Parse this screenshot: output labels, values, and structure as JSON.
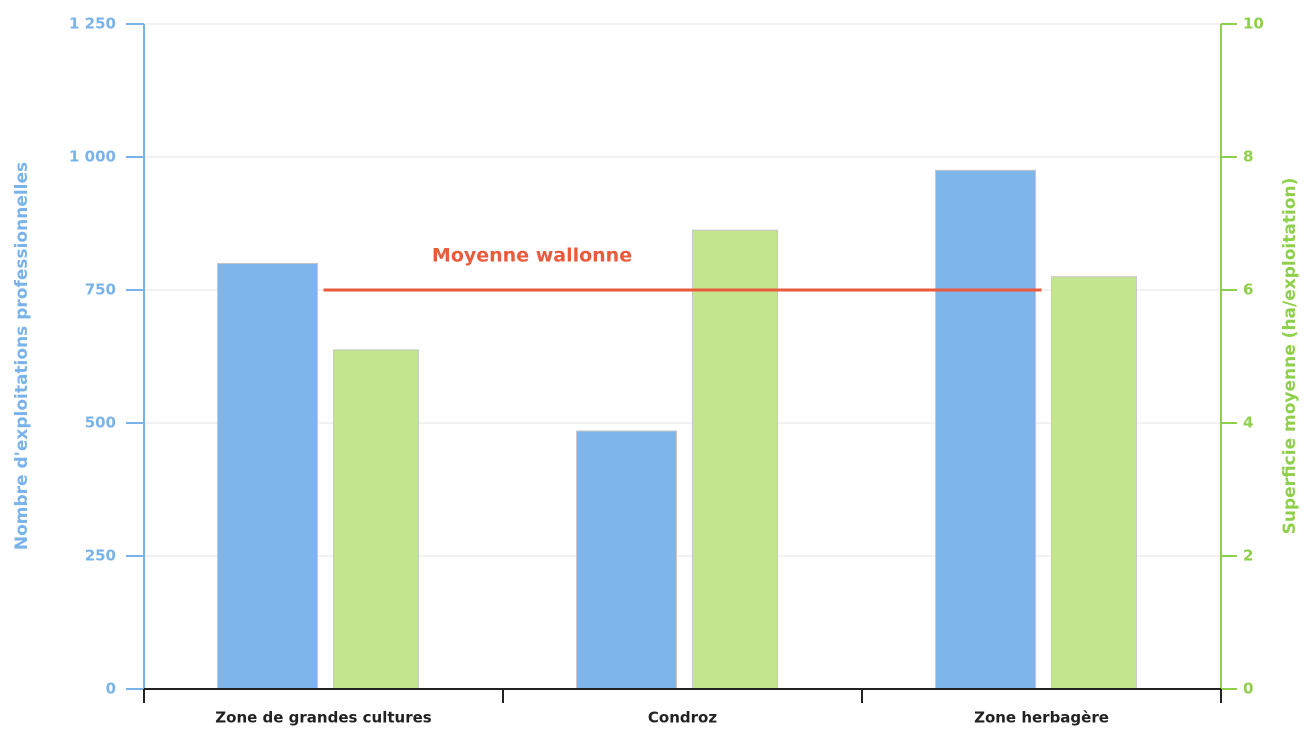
{
  "chart_data": {
    "type": "bar",
    "ylabel": "Nombre d'exploitations professionnelles",
    "y2label": "Superficie moyenne (ha/exploitation)",
    "categories": [
      "Zone de grandes cultures",
      "Condroz",
      "Zone herbagère"
    ],
    "series": [
      {
        "color": "#7eb5ea",
        "values": [
          800,
          485,
          975
        ]
      },
      {
        "color": "#c2e58e",
        "values": [
          5.1,
          6.9,
          6.2
        ],
        "axis": "y2"
      }
    ],
    "ylim": [
      0,
      1250
    ],
    "yticks": [
      0,
      250,
      500,
      750,
      {
        "value": 1000,
        "label": "1 000"
      },
      {
        "value": 1250,
        "label": "1 250"
      }
    ],
    "y2lim": [
      0,
      10
    ],
    "y2ticks": [
      0,
      2,
      4,
      6,
      8,
      10
    ],
    "ycolor": "#7ab3ea",
    "y2color": "#8ed04a",
    "grid": true,
    "annotations": [
      {
        "text": "Moyenne wallonne",
        "value": 6,
        "axis": "y2",
        "color": "#ea5a3c"
      }
    ]
  }
}
